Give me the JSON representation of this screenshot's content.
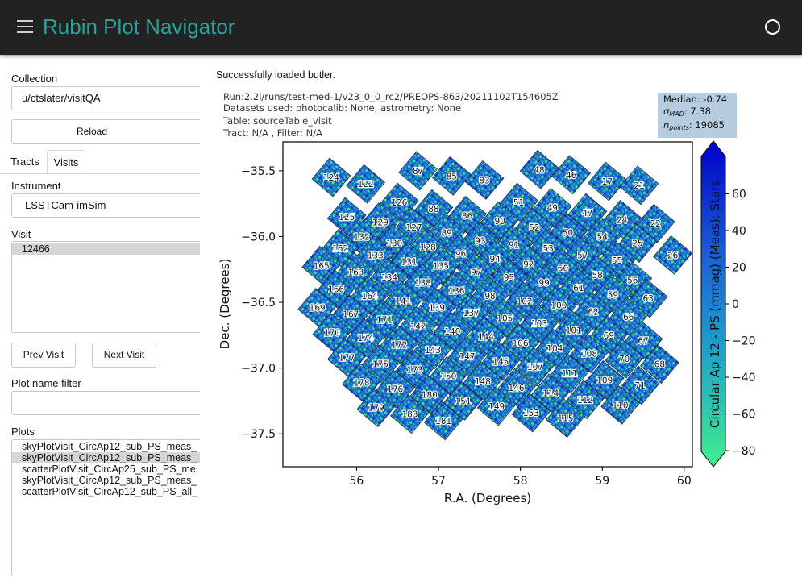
{
  "header": {
    "title": "Rubin Plot Navigator",
    "menu_icon": "hamburger-menu-icon",
    "status_icon": "circle-icon"
  },
  "sidebar": {
    "collection_label": "Collection",
    "collection_value": "u/ctslater/visitQA",
    "reload_label": "Reload",
    "tabs": [
      {
        "label": "Tracts"
      },
      {
        "label": "Visits"
      }
    ],
    "active_tab": "Visits",
    "instrument_label": "Instrument",
    "instrument_value": "LSSTCam-imSim",
    "visit_label": "Visit",
    "visits": [
      {
        "label": "12466",
        "selected": true
      }
    ],
    "prev_label": "Prev Visit",
    "next_label": "Next Visit",
    "filter_label": "Plot name filter",
    "filter_value": "",
    "plots_label": "Plots",
    "plots": [
      {
        "label": "skyPlotVisit_CircAp12_sub_PS_meas_",
        "selected": false
      },
      {
        "label": "skyPlotVisit_CircAp12_sub_PS_meas_",
        "selected": true
      },
      {
        "label": "scatterPlotVisit_CircAp25_sub_PS_me",
        "selected": false
      },
      {
        "label": "skyPlotVisit_CircAp12_sub_PS_meas_",
        "selected": false
      },
      {
        "label": "scatterPlotVisit_CircAp12_sub_PS_all_",
        "selected": false
      }
    ]
  },
  "main": {
    "status": "Successfully loaded butler."
  },
  "chart_data": {
    "type": "scatter",
    "info": [
      "Run:2.2i/runs/test-med-1/v23_0_0_rc2/PREOPS-863/20211102T154605Z",
      "Datasets used: photocalib: None, astrometry: None",
      "Table: sourceTable_visit",
      "Tract: N/A , Filter: N/A"
    ],
    "stats": {
      "median": "Median: -0.74",
      "sigma_mad": "7.38",
      "n_points": "19085"
    },
    "xlabel": "R.A. (Degrees)",
    "ylabel": "Dec. (Degrees)",
    "xlim": [
      55.1,
      60.1
    ],
    "ylim": [
      -37.75,
      -35.28
    ],
    "xticks": [
      "56",
      "57",
      "58",
      "59",
      "60"
    ],
    "yticks": [
      "−35.5",
      "−36.0",
      "−36.5",
      "−37.0",
      "−37.5"
    ],
    "colorbar": {
      "label": "Circular Ap 12 - PS (mmag) (Meas): Stars",
      "range": [
        -87,
        87
      ],
      "ticks": [
        "60",
        "40",
        "20",
        "0",
        "−20",
        "−40",
        "−60",
        "−80"
      ],
      "colors": [
        "#3fef8f",
        "#1fa3c8",
        "#1a5fd6",
        "#0000c8"
      ]
    },
    "detectors": [
      {
        "id": "124",
        "ra": 55.69,
        "dec": -35.55
      },
      {
        "id": "122",
        "ra": 56.11,
        "dec": -35.6
      },
      {
        "id": "87",
        "ra": 56.75,
        "dec": -35.5
      },
      {
        "id": "85",
        "ra": 57.16,
        "dec": -35.54
      },
      {
        "id": "83",
        "ra": 57.56,
        "dec": -35.57
      },
      {
        "id": "48",
        "ra": 58.23,
        "dec": -35.49
      },
      {
        "id": "46",
        "ra": 58.62,
        "dec": -35.53
      },
      {
        "id": "17",
        "ra": 59.06,
        "dec": -35.58
      },
      {
        "id": "21",
        "ra": 59.45,
        "dec": -35.61
      },
      {
        "id": "125",
        "ra": 55.88,
        "dec": -35.85
      },
      {
        "id": "129",
        "ra": 56.29,
        "dec": -35.89
      },
      {
        "id": "126",
        "ra": 56.52,
        "dec": -35.74
      },
      {
        "id": "88",
        "ra": 56.94,
        "dec": -35.79
      },
      {
        "id": "86",
        "ra": 57.35,
        "dec": -35.84
      },
      {
        "id": "90",
        "ra": 57.75,
        "dec": -35.88
      },
      {
        "id": "51",
        "ra": 57.98,
        "dec": -35.74
      },
      {
        "id": "49",
        "ra": 58.39,
        "dec": -35.78
      },
      {
        "id": "47",
        "ra": 58.82,
        "dec": -35.82
      },
      {
        "id": "24",
        "ra": 59.24,
        "dec": -35.87
      },
      {
        "id": "22",
        "ra": 59.65,
        "dec": -35.9
      },
      {
        "id": "127",
        "ra": 56.7,
        "dec": -35.93
      },
      {
        "id": "89",
        "ra": 57.1,
        "dec": -35.97
      },
      {
        "id": "52",
        "ra": 58.17,
        "dec": -35.93
      },
      {
        "id": "50",
        "ra": 58.58,
        "dec": -35.97
      },
      {
        "id": "54",
        "ra": 59.0,
        "dec": -36.0
      },
      {
        "id": "25",
        "ra": 59.43,
        "dec": -36.05
      },
      {
        "id": "132",
        "ra": 56.06,
        "dec": -36.0
      },
      {
        "id": "130",
        "ra": 56.46,
        "dec": -36.05
      },
      {
        "id": "128",
        "ra": 56.87,
        "dec": -36.08
      },
      {
        "id": "93",
        "ra": 57.51,
        "dec": -36.03
      },
      {
        "id": "91",
        "ra": 57.92,
        "dec": -36.06
      },
      {
        "id": "53",
        "ra": 58.34,
        "dec": -36.09
      },
      {
        "id": "57",
        "ra": 58.76,
        "dec": -36.14
      },
      {
        "id": "55",
        "ra": 59.18,
        "dec": -36.18
      },
      {
        "id": "26",
        "ra": 59.86,
        "dec": -36.14
      },
      {
        "id": "162",
        "ra": 55.8,
        "dec": -36.09
      },
      {
        "id": "133",
        "ra": 56.23,
        "dec": -36.14
      },
      {
        "id": "131",
        "ra": 56.64,
        "dec": -36.19
      },
      {
        "id": "96",
        "ra": 57.27,
        "dec": -36.13
      },
      {
        "id": "94",
        "ra": 57.69,
        "dec": -36.17
      },
      {
        "id": "92",
        "ra": 58.1,
        "dec": -36.21
      },
      {
        "id": "60",
        "ra": 58.52,
        "dec": -36.24
      },
      {
        "id": "58",
        "ra": 58.94,
        "dec": -36.29
      },
      {
        "id": "56",
        "ra": 59.37,
        "dec": -36.33
      },
      {
        "id": "165",
        "ra": 55.57,
        "dec": -36.22
      },
      {
        "id": "163",
        "ra": 55.99,
        "dec": -36.27
      },
      {
        "id": "134",
        "ra": 56.4,
        "dec": -36.31
      },
      {
        "id": "135",
        "ra": 57.03,
        "dec": -36.22
      },
      {
        "id": "97",
        "ra": 57.46,
        "dec": -36.27
      },
      {
        "id": "95",
        "ra": 57.86,
        "dec": -36.31
      },
      {
        "id": "99",
        "ra": 58.29,
        "dec": -36.35
      },
      {
        "id": "61",
        "ra": 58.71,
        "dec": -36.39
      },
      {
        "id": "59",
        "ra": 59.13,
        "dec": -36.44
      },
      {
        "id": "63",
        "ra": 59.56,
        "dec": -36.47
      },
      {
        "id": "166",
        "ra": 55.75,
        "dec": -36.4
      },
      {
        "id": "138",
        "ra": 56.81,
        "dec": -36.35
      },
      {
        "id": "136",
        "ra": 57.22,
        "dec": -36.41
      },
      {
        "id": "98",
        "ra": 57.63,
        "dec": -36.45
      },
      {
        "id": "102",
        "ra": 58.05,
        "dec": -36.49
      },
      {
        "id": "100",
        "ra": 58.47,
        "dec": -36.52
      },
      {
        "id": "62",
        "ra": 58.89,
        "dec": -36.57
      },
      {
        "id": "66",
        "ra": 59.32,
        "dec": -36.61
      },
      {
        "id": "164",
        "ra": 56.16,
        "dec": -36.45
      },
      {
        "id": "141",
        "ra": 56.57,
        "dec": -36.49
      },
      {
        "id": "139",
        "ra": 56.98,
        "dec": -36.54
      },
      {
        "id": "137",
        "ra": 57.4,
        "dec": -36.58
      },
      {
        "id": "105",
        "ra": 57.81,
        "dec": -36.62
      },
      {
        "id": "103",
        "ra": 58.23,
        "dec": -36.66
      },
      {
        "id": "101",
        "ra": 58.65,
        "dec": -36.71
      },
      {
        "id": "69",
        "ra": 59.08,
        "dec": -36.75
      },
      {
        "id": "67",
        "ra": 59.5,
        "dec": -36.79
      },
      {
        "id": "169",
        "ra": 55.52,
        "dec": -36.54
      },
      {
        "id": "167",
        "ra": 55.93,
        "dec": -36.59
      },
      {
        "id": "171",
        "ra": 56.34,
        "dec": -36.63
      },
      {
        "id": "142",
        "ra": 56.75,
        "dec": -36.68
      },
      {
        "id": "140",
        "ra": 57.17,
        "dec": -36.72
      },
      {
        "id": "144",
        "ra": 57.58,
        "dec": -36.76
      },
      {
        "id": "106",
        "ra": 58.0,
        "dec": -36.81
      },
      {
        "id": "104",
        "ra": 58.42,
        "dec": -36.85
      },
      {
        "id": "108",
        "ra": 58.84,
        "dec": -36.89
      },
      {
        "id": "70",
        "ra": 59.27,
        "dec": -36.93
      },
      {
        "id": "68",
        "ra": 59.7,
        "dec": -36.97
      },
      {
        "id": "170",
        "ra": 55.7,
        "dec": -36.73
      },
      {
        "id": "174",
        "ra": 56.11,
        "dec": -36.77
      },
      {
        "id": "172",
        "ra": 56.52,
        "dec": -36.82
      },
      {
        "id": "143",
        "ra": 56.93,
        "dec": -36.86
      },
      {
        "id": "147",
        "ra": 57.35,
        "dec": -36.91
      },
      {
        "id": "145",
        "ra": 57.76,
        "dec": -36.95
      },
      {
        "id": "107",
        "ra": 58.18,
        "dec": -36.99
      },
      {
        "id": "111",
        "ra": 58.6,
        "dec": -37.04
      },
      {
        "id": "109",
        "ra": 59.03,
        "dec": -37.09
      },
      {
        "id": "71",
        "ra": 59.46,
        "dec": -37.13
      },
      {
        "id": "177",
        "ra": 55.88,
        "dec": -36.92
      },
      {
        "id": "175",
        "ra": 56.29,
        "dec": -36.97
      },
      {
        "id": "173",
        "ra": 56.71,
        "dec": -37.01
      },
      {
        "id": "150",
        "ra": 57.12,
        "dec": -37.06
      },
      {
        "id": "148",
        "ra": 57.54,
        "dec": -37.1
      },
      {
        "id": "146",
        "ra": 57.95,
        "dec": -37.15
      },
      {
        "id": "114",
        "ra": 58.37,
        "dec": -37.19
      },
      {
        "id": "112",
        "ra": 58.79,
        "dec": -37.24
      },
      {
        "id": "110",
        "ra": 59.22,
        "dec": -37.28
      },
      {
        "id": "178",
        "ra": 56.06,
        "dec": -37.11
      },
      {
        "id": "176",
        "ra": 56.47,
        "dec": -37.16
      },
      {
        "id": "180",
        "ra": 56.89,
        "dec": -37.2
      },
      {
        "id": "151",
        "ra": 57.3,
        "dec": -37.25
      },
      {
        "id": "149",
        "ra": 57.71,
        "dec": -37.29
      },
      {
        "id": "153",
        "ra": 58.13,
        "dec": -37.34
      },
      {
        "id": "115",
        "ra": 58.55,
        "dec": -37.38
      },
      {
        "id": "179",
        "ra": 56.24,
        "dec": -37.3
      },
      {
        "id": "183",
        "ra": 56.65,
        "dec": -37.35
      },
      {
        "id": "181",
        "ra": 57.06,
        "dec": -37.4
      }
    ]
  }
}
